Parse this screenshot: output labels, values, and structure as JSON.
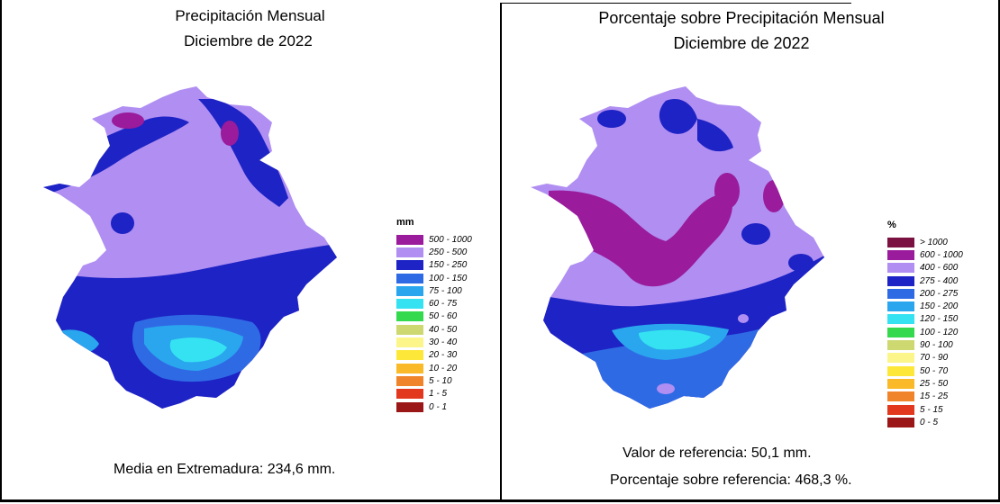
{
  "left": {
    "title_line1": "Precipitación Mensual",
    "title_line2": "Diciembre de 2022",
    "legend_unit": "mm",
    "legend": [
      {
        "label": "500 - 1000",
        "color": "#9a1b9b"
      },
      {
        "label": "250 - 500",
        "color": "#b08ef2"
      },
      {
        "label": "150 - 250",
        "color": "#1d23c4"
      },
      {
        "label": "100 - 150",
        "color": "#2f6ae5"
      },
      {
        "label": "75 - 100",
        "color": "#2aa6ee"
      },
      {
        "label": "60 - 75",
        "color": "#35e2f1"
      },
      {
        "label": "50 - 60",
        "color": "#34d94e"
      },
      {
        "label": "40 - 50",
        "color": "#cdd870"
      },
      {
        "label": "30 - 40",
        "color": "#fbf58a"
      },
      {
        "label": "20 - 30",
        "color": "#fde83a"
      },
      {
        "label": "10 - 20",
        "color": "#f9b928"
      },
      {
        "label": "5 - 10",
        "color": "#f0842a"
      },
      {
        "label": "1 - 5",
        "color": "#e2381e"
      },
      {
        "label": "0 - 1",
        "color": "#9b1616"
      }
    ],
    "stat": "Media en Extremadura: 234,6 mm."
  },
  "right": {
    "title_line1": "Porcentaje sobre Precipitación Mensual",
    "title_line2": "Diciembre de 2022",
    "legend_unit": "%",
    "legend": [
      {
        "label": "> 1000",
        "color": "#7a1140"
      },
      {
        "label": "600 - 1000",
        "color": "#9a1b9b"
      },
      {
        "label": "400 - 600",
        "color": "#b08ef2"
      },
      {
        "label": "275 - 400",
        "color": "#1d23c4"
      },
      {
        "label": "200 - 275",
        "color": "#2f6ae5"
      },
      {
        "label": "150 - 200",
        "color": "#2aa6ee"
      },
      {
        "label": "120 - 150",
        "color": "#35e2f1"
      },
      {
        "label": "100 - 120",
        "color": "#34d94e"
      },
      {
        "label": "90 - 100",
        "color": "#cdd870"
      },
      {
        "label": "70 - 90",
        "color": "#fbf58a"
      },
      {
        "label": "50 - 70",
        "color": "#fde83a"
      },
      {
        "label": "25 - 50",
        "color": "#f9b928"
      },
      {
        "label": "15 - 25",
        "color": "#f0842a"
      },
      {
        "label": "5 - 15",
        "color": "#e2381e"
      },
      {
        "label": "0 - 5",
        "color": "#9b1616"
      }
    ],
    "stat1": "Valor de referencia: 50,1 mm.",
    "stat2": "Porcentaje sobre referencia: 468,3 %."
  }
}
